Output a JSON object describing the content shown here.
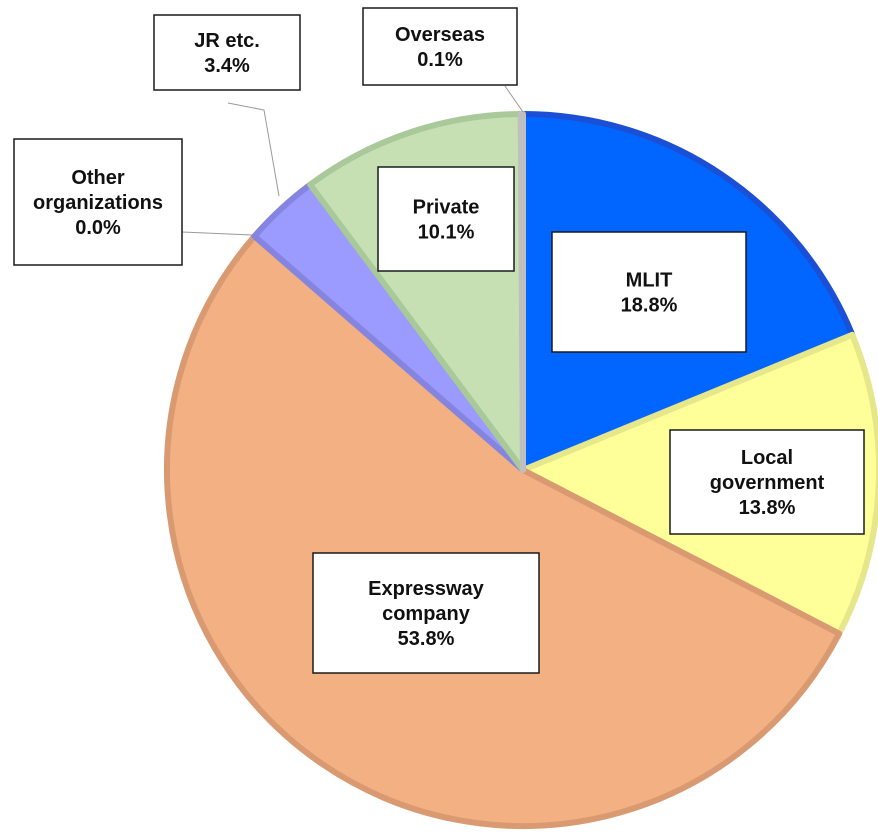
{
  "chart_data": {
    "type": "pie",
    "start_angle_deg": 0,
    "direction": "clockwise",
    "slices": [
      {
        "name": "MLIT",
        "label_lines": [
          "MLIT",
          "18.8%"
        ],
        "value": 18.8,
        "color": "#0066ff",
        "edge": "#1a4fd6"
      },
      {
        "name": "Local government",
        "label_lines": [
          "Local",
          "government",
          "13.8%"
        ],
        "value": 13.8,
        "color": "#ffff99",
        "edge": "#e6e68a"
      },
      {
        "name": "Expressway company",
        "label_lines": [
          "Expressway",
          "company",
          "53.8%"
        ],
        "value": 53.8,
        "color": "#f3b083",
        "edge": "#d99a72"
      },
      {
        "name": "Other organizations",
        "label_lines": [
          "Other",
          "organizations",
          "0.0%"
        ],
        "value": 0.0,
        "color": "#9a9aff",
        "edge": "#8585e0"
      },
      {
        "name": "JR etc.",
        "label_lines": [
          "JR etc.",
          "3.4%"
        ],
        "value": 3.4,
        "color": "#9a9aff",
        "edge": "#8585e0"
      },
      {
        "name": "Private",
        "label_lines": [
          "Private",
          "10.1%"
        ],
        "value": 10.1,
        "color": "#c6e0b4",
        "edge": "#a9c99a"
      },
      {
        "name": "Overseas",
        "label_lines": [
          "Overseas",
          "0.1%"
        ],
        "value": 0.1,
        "color": "#d9d9d9",
        "edge": "#bfbfbf"
      }
    ]
  }
}
